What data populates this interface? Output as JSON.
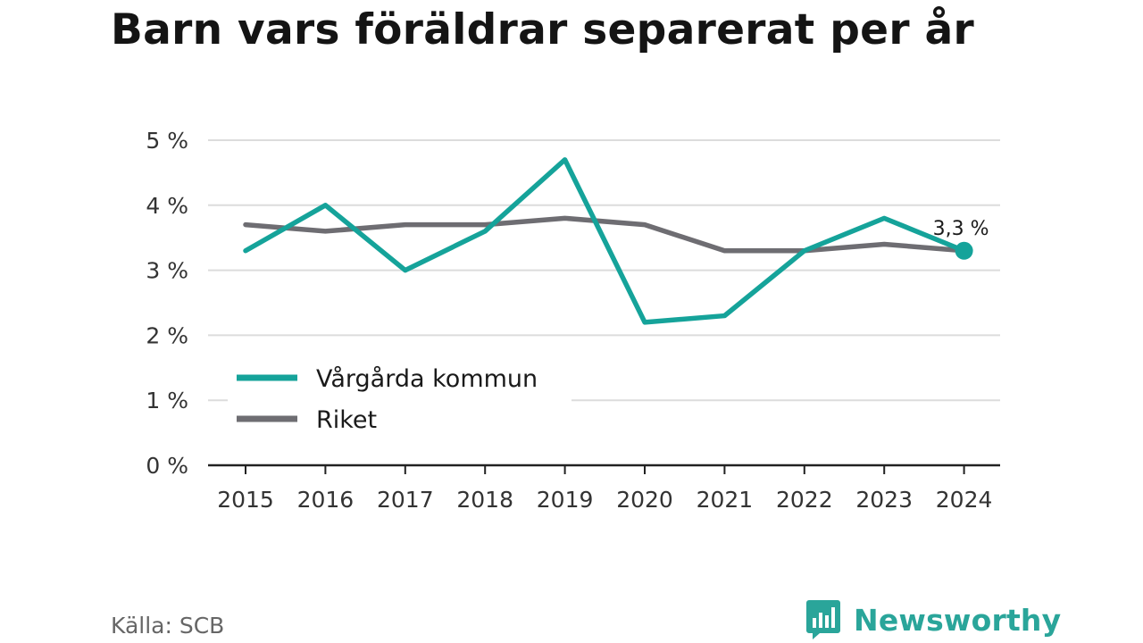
{
  "title": "Barn vars föräldrar separerat per år",
  "source": "Källa: SCB",
  "brand": {
    "name": "Newsworthy",
    "logo_icon": "bar-chart-badge-icon",
    "color": "#2aa59a"
  },
  "chart_data": {
    "type": "line",
    "title": "Barn vars föräldrar separerat per år",
    "x": [
      "2015",
      "2016",
      "2017",
      "2018",
      "2019",
      "2020",
      "2021",
      "2022",
      "2023",
      "2024"
    ],
    "ylim": [
      0,
      5
    ],
    "yticks": [
      0,
      1,
      2,
      3,
      4,
      5
    ],
    "ytick_labels": [
      "0 %",
      "1 %",
      "2 %",
      "3 %",
      "4 %",
      "5 %"
    ],
    "grid": true,
    "legend_position": "bottom-left",
    "series": [
      {
        "name": "Vårgårda kommun",
        "color": "#15a39a",
        "values": [
          3.3,
          4.0,
          3.0,
          3.6,
          4.7,
          2.2,
          2.3,
          3.3,
          3.8,
          3.3
        ]
      },
      {
        "name": "Riket",
        "color": "#6e6d72",
        "values": [
          3.7,
          3.6,
          3.7,
          3.7,
          3.8,
          3.7,
          3.3,
          3.3,
          3.4,
          3.3
        ]
      }
    ],
    "end_label": {
      "series": "Vårgårda kommun",
      "text": "3,3 %"
    }
  }
}
